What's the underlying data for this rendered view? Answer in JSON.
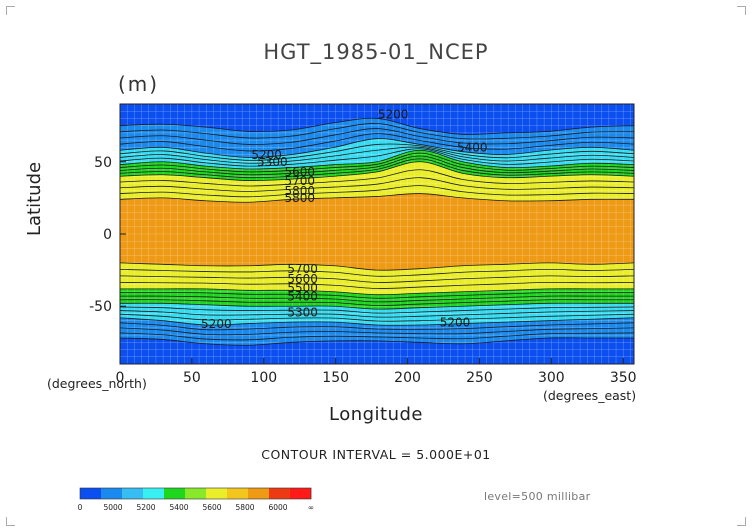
{
  "chart_data": {
    "type": "contour",
    "title": "HGT_1985-01_NCEP",
    "units": "(m)",
    "xlabel": "Longitude",
    "ylabel": "Latitude",
    "x_unit_label": "(degrees_east)",
    "y_unit_label": "(degrees_north)",
    "xlim": [
      0,
      357.5
    ],
    "ylim": [
      -90,
      90
    ],
    "x_ticks": [
      0,
      50,
      100,
      150,
      200,
      250,
      300,
      350
    ],
    "y_ticks": [
      -50,
      0,
      50
    ],
    "contour_interval_text": "CONTOUR INTERVAL = 5.000E+01",
    "level_text": "level=500 millibar",
    "colorbar_labels": [
      "0",
      "5000",
      "5200",
      "5400",
      "5600",
      "5800",
      "6000",
      "∞"
    ],
    "colorbar_colors": [
      "#0b4ff0",
      "#1a8aef",
      "#36bdf2",
      "#38f0f2",
      "#1fd61f",
      "#88e82a",
      "#eaee2a",
      "#f3c61e",
      "#ee9a14",
      "#ee3a14",
      "#ff1a1a"
    ],
    "fill_colors": {
      "below_5000": "#0b4ff0",
      "5000_5200": "#1a8aef",
      "5200_5400": "#36dcf2",
      "5400_5600": "#1fd61f",
      "5600_5800": "#eaee2a",
      "5800_6000": "#ee9a14"
    },
    "contour_labels": [
      "5200",
      "5200",
      "5400",
      "5300",
      "5600",
      "5700",
      "5800",
      "5800",
      "5700",
      "5600",
      "5500",
      "5400",
      "5300",
      "5200",
      "5200"
    ],
    "bands": {
      "north": [
        {
          "level": 5000,
          "lats": [
            75,
            76,
            74,
            71,
            72,
            77,
            80,
            73,
            69,
            70,
            71,
            74,
            75
          ]
        },
        {
          "level": 5200,
          "lats": [
            58,
            60,
            56,
            53,
            55,
            60,
            66,
            62,
            57,
            55,
            58,
            60,
            58
          ]
        },
        {
          "level": 5400,
          "lats": [
            48,
            50,
            47,
            45,
            46,
            48,
            50,
            58,
            50,
            46,
            47,
            49,
            48
          ]
        },
        {
          "level": 5600,
          "lats": [
            40,
            41,
            39,
            37,
            38,
            40,
            43,
            50,
            42,
            39,
            40,
            41,
            40
          ]
        },
        {
          "level": 5800,
          "lats": [
            24,
            25,
            23,
            22,
            24,
            25,
            26,
            28,
            25,
            23,
            23,
            24,
            24
          ]
        }
      ],
      "south": [
        {
          "level": 5800,
          "lats": [
            -20,
            -21,
            -22,
            -22,
            -21,
            -22,
            -25,
            -24,
            -22,
            -21,
            -20,
            -21,
            -20
          ]
        },
        {
          "level": 5600,
          "lats": [
            -38,
            -38,
            -38,
            -39,
            -39,
            -40,
            -42,
            -41,
            -40,
            -39,
            -38,
            -38,
            -38
          ]
        },
        {
          "level": 5400,
          "lats": [
            -48,
            -48,
            -49,
            -50,
            -50,
            -50,
            -52,
            -51,
            -50,
            -49,
            -48,
            -48,
            -48
          ]
        },
        {
          "level": 5200,
          "lats": [
            -58,
            -60,
            -63,
            -62,
            -61,
            -61,
            -63,
            -63,
            -62,
            -61,
            -60,
            -59,
            -58
          ]
        },
        {
          "level": 5000,
          "lats": [
            -72,
            -73,
            -76,
            -77,
            -75,
            -74,
            -74,
            -75,
            -76,
            -74,
            -72,
            -72,
            -72
          ]
        }
      ]
    }
  }
}
